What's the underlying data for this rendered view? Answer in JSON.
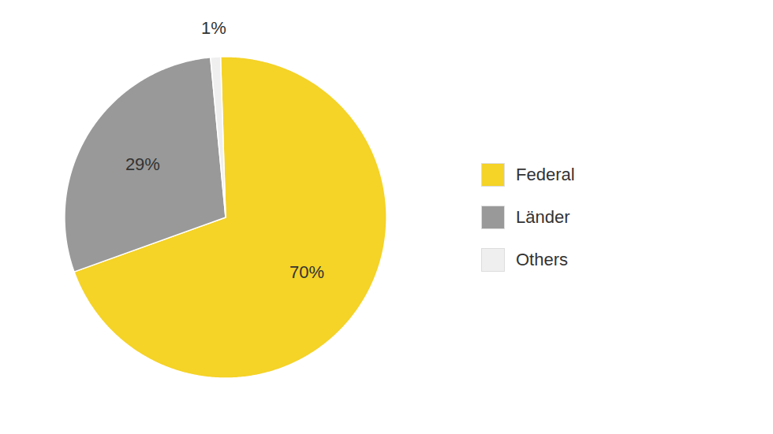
{
  "chart_data": {
    "type": "pie",
    "categories": [
      "Federal",
      "Länder",
      "Others"
    ],
    "values": [
      70,
      29,
      1
    ],
    "value_labels": [
      "70%",
      "29%",
      "1%"
    ],
    "colors": [
      "#F5D327",
      "#999999",
      "#EFEFEF"
    ],
    "data_labels": true,
    "legend": "right"
  }
}
